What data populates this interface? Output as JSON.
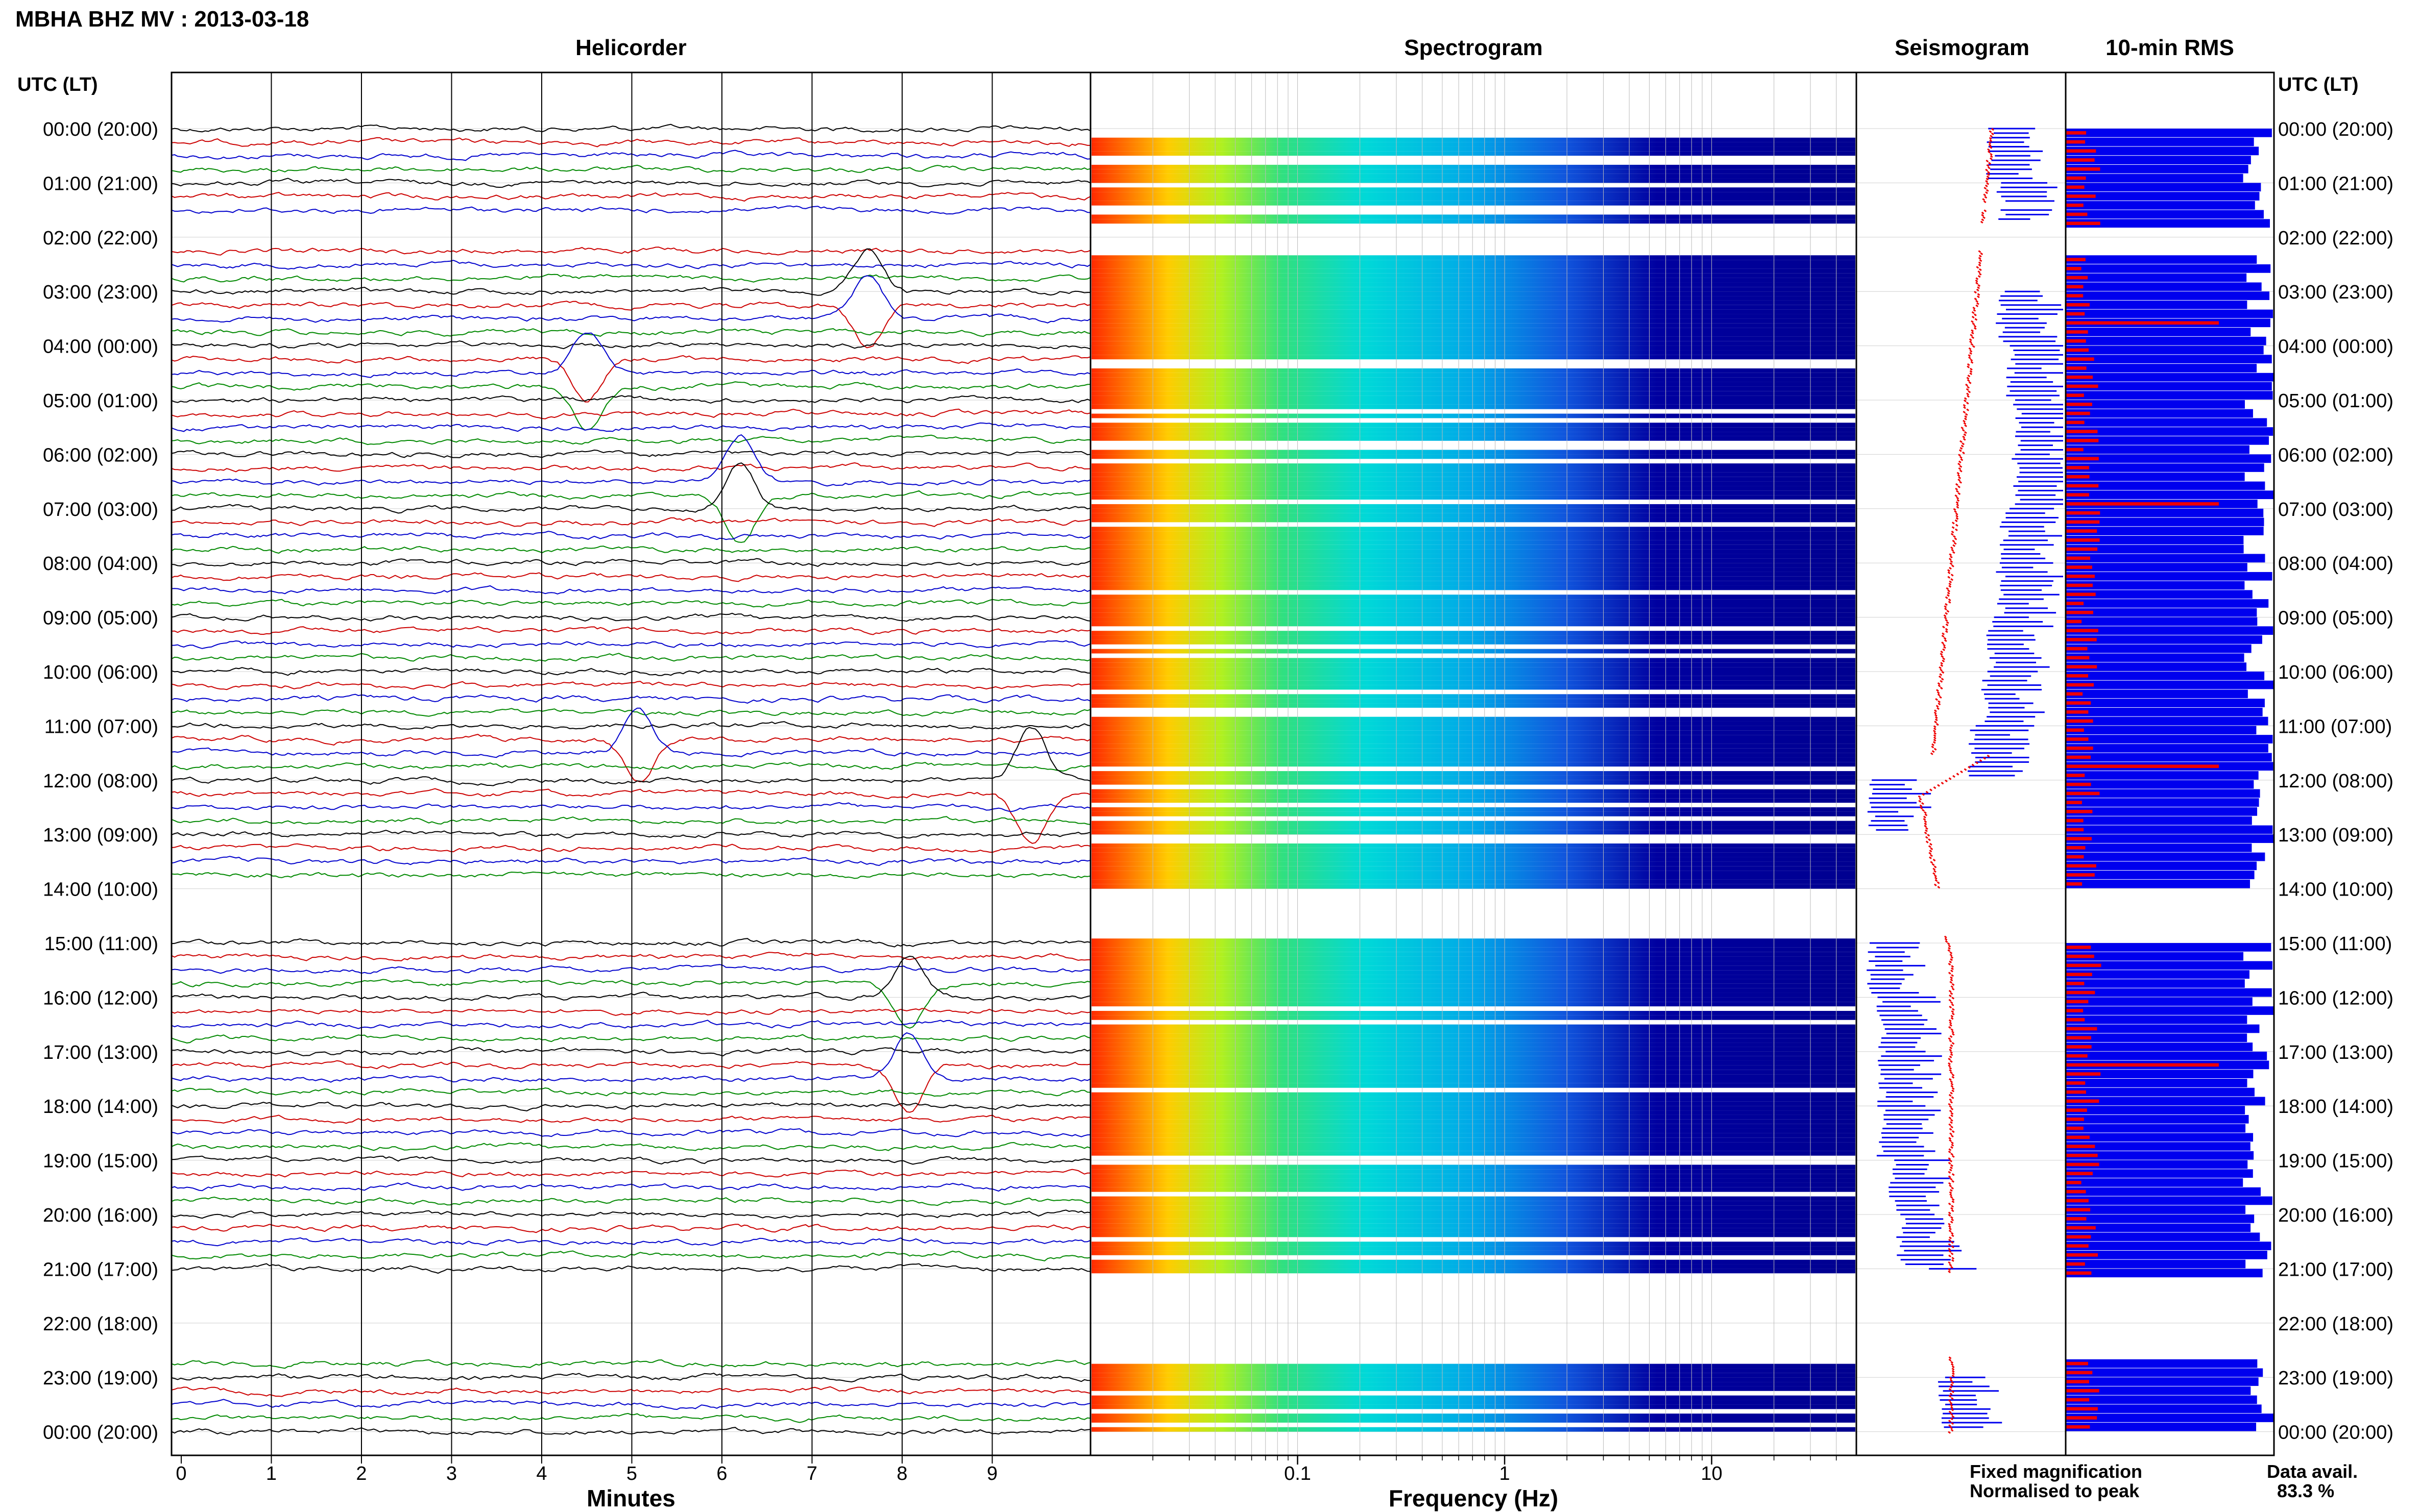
{
  "title": "MBHA BHZ MV : 2013-03-18",
  "panels": {
    "helicorder": "Helicorder",
    "spectrogram": "Spectrogram",
    "seismogram": "Seismogram",
    "rms": "10-min RMS"
  },
  "time_axis_label": "UTC (LT)",
  "time_labels": [
    "00:00 (20:00)",
    "01:00 (21:00)",
    "02:00 (22:00)",
    "03:00 (23:00)",
    "04:00 (00:00)",
    "05:00 (01:00)",
    "06:00 (02:00)",
    "07:00 (03:00)",
    "08:00 (04:00)",
    "09:00 (05:00)",
    "10:00 (06:00)",
    "11:00 (07:00)",
    "12:00 (08:00)",
    "13:00 (09:00)",
    "14:00 (10:00)",
    "15:00 (11:00)",
    "16:00 (12:00)",
    "17:00 (13:00)",
    "18:00 (14:00)",
    "19:00 (15:00)",
    "20:00 (16:00)",
    "21:00 (17:00)",
    "22:00 (18:00)",
    "23:00 (19:00)",
    "00:00 (20:00)"
  ],
  "helicorder_x": {
    "label": "Minutes",
    "ticks": [
      "0",
      "1",
      "2",
      "3",
      "4",
      "5",
      "6",
      "7",
      "8",
      "9"
    ],
    "range": [
      0,
      10
    ],
    "trace_colors": [
      "#000000",
      "#cc0000",
      "#0000cc",
      "#008800"
    ]
  },
  "spectrogram_x": {
    "label": "Frequency (Hz)",
    "ticks": [
      "0.1",
      "1",
      "10"
    ],
    "scale": "log",
    "range": [
      0.01,
      50
    ]
  },
  "legend": {
    "fixed": "Fixed magnification",
    "fixed_color": "#0000ee",
    "normalised": "Normalised to peak",
    "normalised_color": "#ee0000"
  },
  "data_avail": {
    "label": "Data avail.",
    "value": "83.3 %"
  },
  "chart_data": {
    "type": "heatmap",
    "title": "MBHA BHZ MV : 2013-03-18",
    "ylabel": "UTC (LT)",
    "hours": 24,
    "data_availability_pct": 83.3,
    "gaps_hours": [
      [
        1.35,
        1.5
      ],
      [
        1.75,
        2.25
      ],
      [
        14.0,
        14.85
      ],
      [
        21.05,
        22.6
      ]
    ],
    "seismogram_fixed_level_per_hour": [
      0.35,
      0.3,
      0.0,
      0.3,
      0.25,
      0.22,
      0.22,
      0.28,
      0.3,
      0.35,
      0.38,
      0.45,
      0.95,
      0.0,
      0.0,
      0.95,
      0.9,
      0.9,
      0.9,
      0.85,
      0.8,
      0.65,
      0.0,
      0.6
    ],
    "rms_red_long_spikes_hours": [
      3.55,
      6.8,
      11.7,
      17.2
    ],
    "colors": {
      "spectrogram_low_freq": "#ff2a00",
      "spectrogram_mid": "#00cccc",
      "spectrogram_high": "#000099",
      "rms_fixed": "#0000ee",
      "rms_normalised": "#ee0000"
    }
  }
}
